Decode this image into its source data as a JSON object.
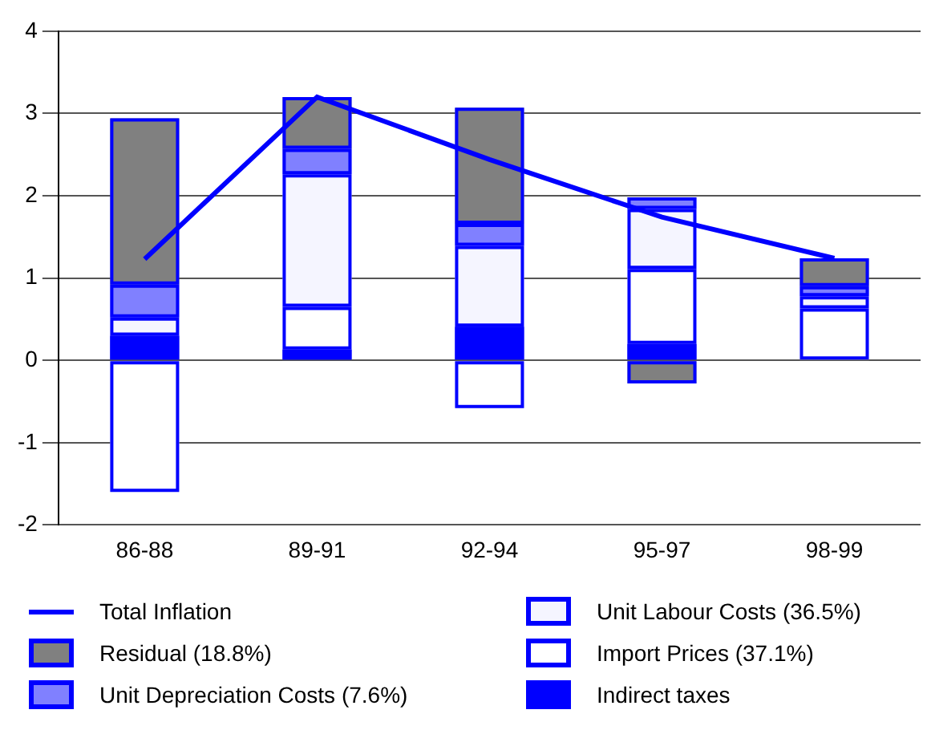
{
  "chart_data": {
    "type": "bar",
    "stacked": true,
    "categories": [
      "86-88",
      "89-91",
      "92-94",
      "95-97",
      "98-99"
    ],
    "series": [
      {
        "name": "Indirect taxes",
        "color": "#0000ff",
        "values": [
          0.3,
          0.13,
          0.41,
          0.2,
          0
        ]
      },
      {
        "name": "Import Prices (37.1%)",
        "color": "#ffffff",
        "values": [
          -1.6,
          0.52,
          -0.58,
          0.91,
          0.63
        ]
      },
      {
        "name": "Unit Labour Costs (36.5%)",
        "color": "#f5f5ff",
        "values": [
          0.22,
          1.61,
          0.98,
          0.73,
          0.15
        ]
      },
      {
        "name": "Unit Depreciation Costs (7.6%)",
        "color": "#8080ff",
        "values": [
          0.4,
          0.31,
          0.27,
          0.14,
          0.12
        ]
      },
      {
        "name": "Residual (18.8%)",
        "color": "#808080",
        "values": [
          2.02,
          0.63,
          1.41,
          -0.28,
          0.34
        ]
      },
      {
        "name": "Total Inflation",
        "type": "line",
        "color": "#0000ff",
        "values": [
          1.23,
          3.2,
          2.44,
          1.74,
          1.24
        ]
      }
    ],
    "ylim": [
      -2,
      4
    ],
    "yticks": [
      -2,
      -1,
      0,
      1,
      2,
      3,
      4
    ],
    "grid": "y",
    "legend": "bottom"
  }
}
